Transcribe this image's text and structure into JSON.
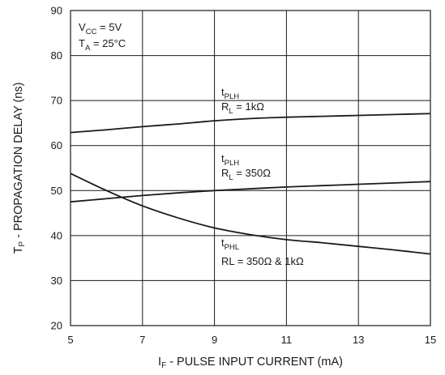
{
  "chart_data": {
    "type": "line",
    "x": [
      5,
      6,
      7,
      8,
      9,
      10,
      11,
      12,
      13,
      14,
      15
    ],
    "xlim": [
      5,
      15
    ],
    "ylim": [
      20,
      90
    ],
    "x_ticks": [
      5,
      7,
      9,
      11,
      13,
      15
    ],
    "y_ticks": [
      20,
      30,
      40,
      50,
      60,
      70,
      80,
      90
    ],
    "grid": true,
    "xlabel": {
      "main": "I",
      "sub": "F",
      "rest": " - PULSE INPUT CURRENT (mA)"
    },
    "ylabel": {
      "main": "T",
      "sub": "P",
      "rest": " - PROPAGATION DELAY (ns)"
    },
    "conditions": [
      {
        "main": "V",
        "sub": "CC",
        "rest": " = 5V"
      },
      {
        "main": "T",
        "sub": "A",
        "rest": " = 25°C"
      }
    ],
    "series": [
      {
        "label1": {
          "main": "t",
          "sub": "PLH"
        },
        "label2": {
          "main": "R",
          "sub": "L",
          "rest": " = 1kΩ"
        },
        "values": [
          62.9,
          63.5,
          64.2,
          64.8,
          65.5,
          66.0,
          66.3,
          66.5,
          66.7,
          66.9,
          67.1
        ]
      },
      {
        "label1": {
          "main": "t",
          "sub": "PLH"
        },
        "label2": {
          "main": "R",
          "sub": "L",
          "rest": " = 350Ω"
        },
        "values": [
          47.5,
          48.2,
          48.9,
          49.5,
          50.0,
          50.4,
          50.8,
          51.1,
          51.4,
          51.7,
          52.0
        ]
      },
      {
        "label1": {
          "main": "t",
          "sub": "PHL"
        },
        "label2": {
          "main": "RL = 350Ω & 1kΩ",
          "sub": "",
          "rest": ""
        },
        "values": [
          53.8,
          50.0,
          46.6,
          43.9,
          41.7,
          40.2,
          39.1,
          38.4,
          37.6,
          36.8,
          35.9
        ]
      }
    ]
  }
}
